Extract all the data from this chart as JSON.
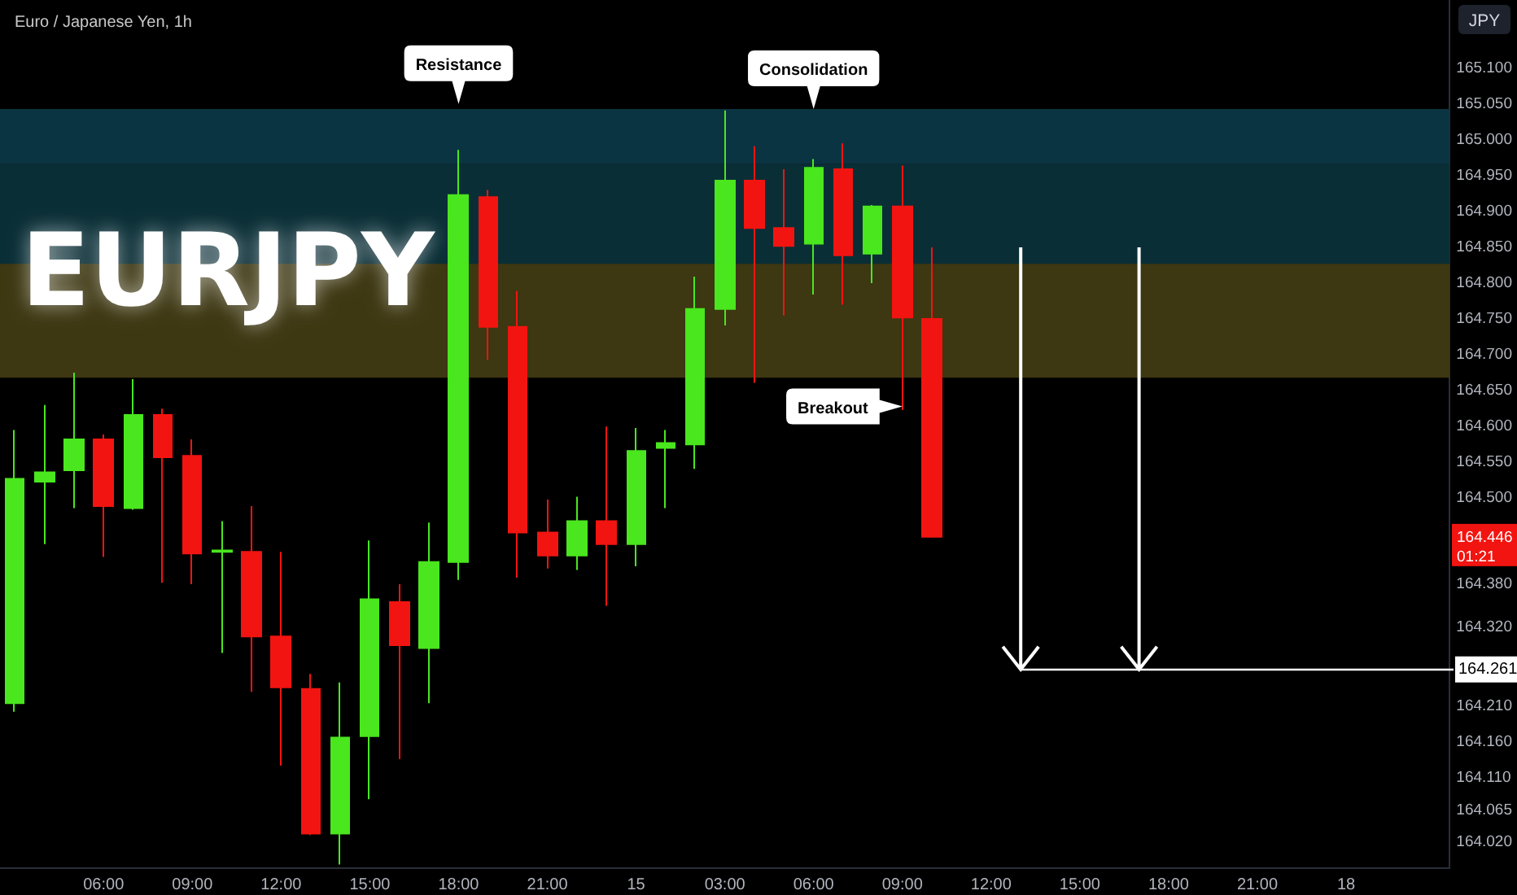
{
  "chart_data": {
    "type": "candlestick",
    "title": "EURJPY",
    "subtitle": "Euro / Japanese Yen, 1h",
    "ylabel": "JPY",
    "categories": [
      null,
      null,
      null,
      "06:00",
      null,
      null,
      "09:00",
      null,
      null,
      "12:00",
      null,
      null,
      "15:00",
      null,
      null,
      "18:00",
      null,
      null,
      "21:00",
      null,
      null,
      "15",
      null,
      null,
      "03:00",
      null,
      null,
      "06:00",
      null,
      null,
      "09:00",
      null,
      null,
      "12:00",
      null,
      null,
      "15:00",
      null,
      null,
      "18:00",
      null,
      null,
      "21:00",
      null,
      null,
      "18",
      null,
      null,
      null
    ],
    "ohlc": [
      [
        164.214,
        164.595,
        164.202,
        164.527
      ],
      [
        164.523,
        164.63,
        164.436,
        164.536
      ],
      [
        164.539,
        164.675,
        164.486,
        164.582
      ],
      [
        164.582,
        164.589,
        164.418,
        164.489
      ],
      [
        164.486,
        164.666,
        164.484,
        164.616
      ],
      [
        164.616,
        164.625,
        164.382,
        164.557
      ],
      [
        164.559,
        164.582,
        164.38,
        164.423
      ],
      [
        164.425,
        164.468,
        164.284,
        164.427
      ],
      [
        164.425,
        164.489,
        164.23,
        164.307
      ],
      [
        164.307,
        164.425,
        164.127,
        164.236
      ],
      [
        164.234,
        164.255,
        164.03,
        164.032
      ],
      [
        164.032,
        164.243,
        163.989,
        164.166
      ],
      [
        164.168,
        164.441,
        164.08,
        164.359
      ],
      [
        164.355,
        164.38,
        164.136,
        164.295
      ],
      [
        164.291,
        164.466,
        164.214,
        164.411
      ],
      [
        164.411,
        164.986,
        164.386,
        164.923
      ],
      [
        164.92,
        164.93,
        164.693,
        164.739
      ],
      [
        164.739,
        164.789,
        164.389,
        164.452
      ],
      [
        164.452,
        164.498,
        164.402,
        164.42
      ],
      [
        164.42,
        164.502,
        164.4,
        164.468
      ],
      [
        164.468,
        164.6,
        164.35,
        164.436
      ],
      [
        164.436,
        164.598,
        164.405,
        164.566
      ],
      [
        164.57,
        164.595,
        164.486,
        164.577
      ],
      [
        164.575,
        164.809,
        164.541,
        164.764
      ],
      [
        164.764,
        165.041,
        164.741,
        164.943
      ],
      [
        164.943,
        164.991,
        164.661,
        164.877
      ],
      [
        164.877,
        164.959,
        164.755,
        164.852
      ],
      [
        164.855,
        164.973,
        164.784,
        164.961
      ],
      [
        164.959,
        164.995,
        164.77,
        164.839
      ],
      [
        164.841,
        164.909,
        164.8,
        164.907
      ],
      [
        164.907,
        164.964,
        164.623,
        164.752
      ],
      [
        164.75,
        164.85,
        164.446,
        164.446
      ],
      null,
      null,
      null,
      null,
      null,
      null,
      null,
      null,
      null,
      null,
      null,
      null,
      null,
      null,
      null,
      null,
      null
    ],
    "colors": [
      "#4ae61e",
      "#4ae61e",
      "#4ae61e",
      "#f21410",
      "#4ae61e",
      "#f21410",
      "#f21410",
      "#4ae61e",
      "#f21410",
      "#f21410",
      "#f21410",
      "#4ae61e",
      "#4ae61e",
      "#f21410",
      "#4ae61e",
      "#4ae61e",
      "#f21410",
      "#f21410",
      "#f21410",
      "#4ae61e",
      "#f21410",
      "#4ae61e",
      "#4ae61e",
      "#4ae61e",
      "#4ae61e",
      "#f21410",
      "#f21410",
      "#4ae61e",
      "#f21410",
      "#4ae61e",
      "#f21410",
      "#f21410",
      null,
      null,
      null,
      null,
      null,
      null,
      null,
      null,
      null,
      null,
      null,
      null,
      null,
      null,
      null,
      null,
      null
    ],
    "ylim": [
      163.985,
      165.195
    ],
    "yticks": [
      {
        "value": 165.1,
        "label": "165.100"
      },
      {
        "value": 165.05,
        "label": "165.050"
      },
      {
        "value": 165,
        "label": "165.000"
      },
      {
        "value": 164.95,
        "label": "164.950"
      },
      {
        "value": 164.9,
        "label": "164.900"
      },
      {
        "value": 164.85,
        "label": "164.850"
      },
      {
        "value": 164.8,
        "label": "164.800"
      },
      {
        "value": 164.75,
        "label": "164.750"
      },
      {
        "value": 164.7,
        "label": "164.700"
      },
      {
        "value": 164.65,
        "label": "164.650"
      },
      {
        "value": 164.6,
        "label": "164.600"
      },
      {
        "value": 164.55,
        "label": "164.550"
      },
      {
        "value": 164.5,
        "label": "164.500"
      },
      {
        "value": 164.38,
        "label": "164.380"
      },
      {
        "value": 164.32,
        "label": "164.320"
      },
      {
        "value": 164.21,
        "label": "164.210"
      },
      {
        "value": 164.16,
        "label": "164.160"
      },
      {
        "value": 164.11,
        "label": "164.110"
      },
      {
        "value": 164.065,
        "label": "164.065"
      },
      {
        "value": 164.02,
        "label": "164.020"
      }
    ],
    "bands": [
      {
        "axis": "y",
        "from": 164.966,
        "to": 165.043,
        "color": "#0b3442"
      },
      {
        "axis": "y",
        "from": 164.823,
        "to": 164.966,
        "color": "#0a2e36"
      },
      {
        "axis": "y",
        "from": 164.668,
        "to": 164.827,
        "color": "#3d3712"
      }
    ],
    "ref_lines": [
      {
        "axis": "y",
        "value": 164.261,
        "label": "164.261",
        "color": "#ffffff"
      }
    ],
    "annotations": [
      {
        "text": "Resistance",
        "x": "18:00",
        "y": 165.05
      },
      "Consolidation",
      "Breakout",
      "164.446",
      "01:21"
    ],
    "grid": false
  }
}
